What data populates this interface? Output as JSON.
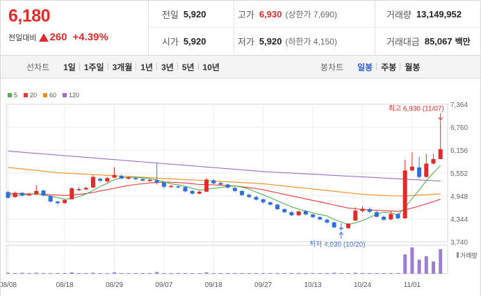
{
  "header": {
    "current_price": "6,180",
    "change_label": "전일대비",
    "change_amount": "260",
    "change_percent": "+4.39%",
    "prev_close": {
      "label": "전일",
      "value": "5,920"
    },
    "open": {
      "label": "시가",
      "value": "5,920"
    },
    "high": {
      "label": "고가",
      "value": "6,930",
      "sub": "(상한가 7,690)"
    },
    "low": {
      "label": "저가",
      "value": "5,920",
      "sub": "(하한가 4,150)"
    },
    "volume": {
      "label": "거래량",
      "value": "13,149,952"
    },
    "trade_value": {
      "label": "거래대금",
      "value": "85,067",
      "unit": "백만"
    }
  },
  "toolbar": {
    "line_chart_caption": "선차트",
    "line_periods": [
      "1일",
      "1주일",
      "3개월",
      "1년",
      "3년",
      "5년",
      "10년"
    ],
    "candle_caption": "봉차트",
    "candle_periods": [
      "일봉",
      "주봉",
      "월봉"
    ],
    "active_candle_period": "일봉"
  },
  "colors": {
    "up": "#e12b2b",
    "down": "#2f6fd6",
    "ma5": "#4caf50",
    "ma20": "#e53935",
    "ma60": "#f08c1e",
    "ma120": "#9b6bc7",
    "volume": "#9c7fd4"
  },
  "chart_data": {
    "type": "candlestick",
    "legend": [
      {
        "name": "5",
        "color": "#4caf50"
      },
      {
        "name": "20",
        "color": "#e53935"
      },
      {
        "name": "60",
        "color": "#f08c1e"
      },
      {
        "name": "120",
        "color": "#9b6bc7"
      }
    ],
    "y_ticks": [
      "7,364",
      "6,760",
      "6,156",
      "5,552",
      "4,948",
      "4,344",
      "3,740"
    ],
    "ylim": [
      3740,
      7364
    ],
    "x_ticks": [
      "08/08",
      "08/18",
      "08/29",
      "09/07",
      "09/18",
      "09/27",
      "10/13",
      "10/24",
      "11/01"
    ],
    "x_tick_index": [
      0,
      8,
      15,
      22,
      29,
      36,
      43,
      50,
      57
    ],
    "high_annotation": "최고 6,930 (11/07)",
    "low_annotation": "최저 4,030 (10/20)",
    "volume_label": "거래량",
    "candles": [
      [
        5050,
        4900,
        5080,
        4880
      ],
      [
        4920,
        5030,
        5060,
        4900
      ],
      [
        5030,
        4960,
        5050,
        4930
      ],
      [
        4980,
        4990,
        5030,
        4950
      ],
      [
        4990,
        5080,
        5230,
        4970
      ],
      [
        5090,
        4960,
        5110,
        4940
      ],
      [
        4950,
        4800,
        4970,
        4780
      ],
      [
        4800,
        4760,
        4820,
        4720
      ],
      [
        4760,
        4840,
        4860,
        4740
      ],
      [
        4860,
        5150,
        5180,
        4850
      ],
      [
        5100,
        5130,
        5170,
        5080
      ],
      [
        5120,
        5160,
        5190,
        5100
      ],
      [
        5170,
        5450,
        5500,
        5150
      ],
      [
        5400,
        5350,
        5430,
        5320
      ],
      [
        5330,
        5420,
        5450,
        5300
      ],
      [
        5430,
        5500,
        5700,
        5420
      ],
      [
        5480,
        5410,
        5510,
        5390
      ],
      [
        5400,
        5430,
        5460,
        5380
      ],
      [
        5420,
        5390,
        5450,
        5370
      ],
      [
        5390,
        5350,
        5410,
        5330
      ],
      [
        5340,
        5370,
        5400,
        5320
      ],
      [
        5360,
        5300,
        5800,
        5250
      ],
      [
        5300,
        5190,
        5320,
        5150
      ],
      [
        5190,
        5210,
        5240,
        5160
      ],
      [
        5200,
        5180,
        5230,
        5150
      ],
      [
        5180,
        5070,
        5200,
        5050
      ],
      [
        5080,
        5010,
        5100,
        4980
      ],
      [
        5010,
        5060,
        5080,
        4990
      ],
      [
        5060,
        5380,
        5420,
        5050
      ],
      [
        5360,
        5280,
        5390,
        5260
      ],
      [
        5290,
        5250,
        5320,
        5230
      ],
      [
        5250,
        5170,
        5270,
        5140
      ],
      [
        5160,
        5080,
        5180,
        5050
      ],
      [
        5080,
        4970,
        5100,
        4950
      ],
      [
        4980,
        4920,
        5000,
        4890
      ],
      [
        4920,
        4850,
        4950,
        4830
      ],
      [
        4860,
        4780,
        4880,
        4750
      ],
      [
        4780,
        4720,
        4800,
        4690
      ],
      [
        4720,
        4600,
        4740,
        4580
      ],
      [
        4600,
        4520,
        4620,
        4500
      ],
      [
        4520,
        4440,
        4540,
        4420
      ],
      [
        4440,
        4540,
        4560,
        4420
      ],
      [
        4550,
        4460,
        4570,
        4440
      ],
      [
        4460,
        4390,
        4480,
        4370
      ],
      [
        4390,
        4330,
        4410,
        4310
      ],
      [
        4320,
        4250,
        4350,
        4230
      ],
      [
        4250,
        4120,
        4270,
        4100
      ],
      [
        4110,
        4100,
        4230,
        4030
      ],
      [
        4100,
        4220,
        4230,
        4080
      ],
      [
        4300,
        4560,
        4650,
        4290
      ],
      [
        4550,
        4610,
        4680,
        4520
      ],
      [
        4600,
        4530,
        4640,
        4500
      ],
      [
        4520,
        4400,
        4550,
        4380
      ],
      [
        4400,
        4320,
        4430,
        4300
      ],
      [
        4330,
        4470,
        4560,
        4310
      ],
      [
        4470,
        4360,
        4490,
        4340
      ],
      [
        4360,
        5620,
        5900,
        4350
      ],
      [
        5620,
        5720,
        6100,
        5600
      ],
      [
        5700,
        5450,
        5980,
        5400
      ],
      [
        5450,
        5800,
        6060,
        5430
      ],
      [
        5800,
        5920,
        6050,
        5780
      ],
      [
        5920,
        6180,
        6930,
        5920
      ]
    ],
    "ma5": [
      4990,
      4960,
      4970,
      4990,
      5000,
      4980,
      4940,
      4900,
      4860,
      4880,
      4930,
      5000,
      5090,
      5200,
      5280,
      5380,
      5420,
      5440,
      5440,
      5420,
      5400,
      5370,
      5320,
      5270,
      5240,
      5200,
      5150,
      5100,
      5120,
      5150,
      5170,
      5200,
      5210,
      5180,
      5130,
      5050,
      4980,
      4900,
      4820,
      4740,
      4660,
      4600,
      4550,
      4500,
      4460,
      4420,
      4330,
      4260,
      4200,
      4240,
      4300,
      4380,
      4470,
      4520,
      4500,
      4450,
      4640,
      4880,
      5100,
      5350,
      5560,
      5750
    ],
    "ma20": [
      5020,
      5010,
      5010,
      5000,
      5000,
      4990,
      4980,
      4970,
      4960,
      4970,
      4990,
      5010,
      5040,
      5080,
      5110,
      5150,
      5190,
      5220,
      5250,
      5270,
      5290,
      5300,
      5310,
      5310,
      5300,
      5290,
      5270,
      5250,
      5250,
      5240,
      5230,
      5220,
      5210,
      5190,
      5170,
      5140,
      5110,
      5070,
      5030,
      4990,
      4950,
      4910,
      4870,
      4830,
      4790,
      4750,
      4710,
      4670,
      4630,
      4610,
      4590,
      4580,
      4570,
      4560,
      4550,
      4540,
      4580,
      4630,
      4680,
      4740,
      4800,
      4860
    ],
    "ma60": [
      5700,
      5680,
      5660,
      5640,
      5620,
      5600,
      5580,
      5560,
      5550,
      5540,
      5530,
      5520,
      5510,
      5500,
      5490,
      5480,
      5470,
      5460,
      5450,
      5440,
      5430,
      5420,
      5410,
      5400,
      5390,
      5380,
      5370,
      5360,
      5350,
      5340,
      5330,
      5320,
      5310,
      5300,
      5290,
      5280,
      5270,
      5250,
      5230,
      5210,
      5190,
      5170,
      5150,
      5130,
      5110,
      5090,
      5070,
      5050,
      5030,
      5010,
      4990,
      4980,
      4970,
      4960,
      4950,
      4950,
      4950,
      4960,
      4970,
      4980,
      4990,
      5000
    ],
    "ma120": [
      6130,
      6115,
      6100,
      6085,
      6070,
      6055,
      6040,
      6025,
      6010,
      5995,
      5980,
      5965,
      5950,
      5935,
      5920,
      5905,
      5890,
      5875,
      5860,
      5845,
      5830,
      5815,
      5800,
      5785,
      5770,
      5755,
      5740,
      5725,
      5710,
      5695,
      5680,
      5665,
      5650,
      5635,
      5620,
      5605,
      5590,
      5580,
      5570,
      5560,
      5550,
      5540,
      5530,
      5520,
      5510,
      5500,
      5490,
      5480,
      5470,
      5460,
      5450,
      5440,
      5430,
      5420,
      5410,
      5400,
      5390,
      5380,
      5370,
      5360,
      5350,
      5340
    ],
    "volumes": [
      3,
      2,
      3,
      2,
      3,
      2,
      2,
      2,
      2,
      4,
      2,
      2,
      3,
      2,
      2,
      4,
      2,
      2,
      2,
      2,
      2,
      5,
      2,
      2,
      2,
      2,
      2,
      2,
      4,
      2,
      2,
      2,
      2,
      2,
      2,
      2,
      2,
      2,
      2,
      2,
      2,
      2,
      2,
      2,
      2,
      2,
      3,
      2,
      2,
      3,
      2,
      2,
      2,
      2,
      2,
      2,
      55,
      75,
      40,
      50,
      35,
      70
    ]
  }
}
